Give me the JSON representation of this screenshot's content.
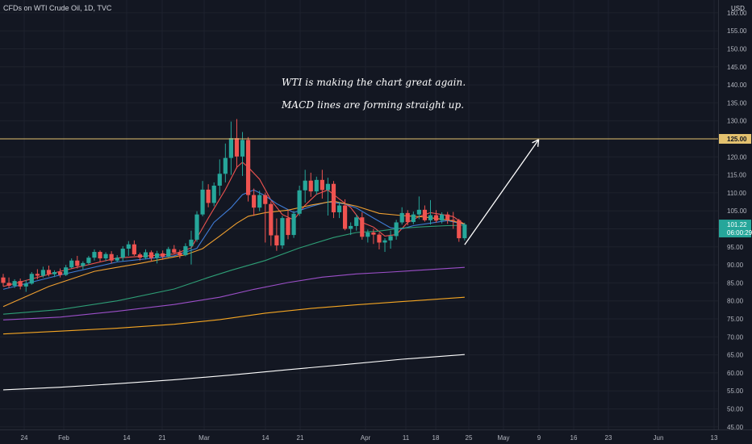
{
  "header": {
    "title": "CFDs on WTI Crude Oil, 1D, TVC"
  },
  "price_axis": {
    "currency": "USD"
  },
  "annotations": [
    "WTI is making the chart great again.",
    "MACD lines are forming straight up."
  ],
  "price_labels": {
    "resistance": "125.00",
    "last_price": "101.22",
    "countdown": "06:00:29"
  },
  "colors": {
    "background": "#131722",
    "grid": "#1e222d",
    "up_candle": "#26a69a",
    "down_candle": "#ef5350",
    "resistance_line": "#e3c16f",
    "ema_fast": "#ef5350",
    "ema_mid": "#3f7cd6",
    "ema_slow": "#f0a030",
    "ema_100": "#2e9e76",
    "ema_150": "#9c4fc9",
    "ema_200": "#f5a623",
    "ema_long": "#ffffff",
    "arrow": "#ffffff"
  },
  "chart_data": {
    "type": "candlestick",
    "title": "CFDs on WTI Crude Oil, 1D, TVC",
    "y_axis": {
      "unit": "USD",
      "range": [
        44,
        162
      ],
      "ticks": [
        "45.00",
        "50.00",
        "55.00",
        "60.00",
        "65.00",
        "70.00",
        "75.00",
        "80.00",
        "85.00",
        "90.00",
        "95.00",
        "100.00",
        "105.00",
        "110.00",
        "115.00",
        "120.00",
        "125.00",
        "130.00",
        "135.00",
        "140.00",
        "145.00",
        "150.00",
        "155.00",
        "160.00"
      ]
    },
    "x_axis": {
      "ticks": [
        "24",
        "Feb",
        "14",
        "21",
        "Mar",
        "14",
        "21",
        "Apr",
        "11",
        "18",
        "25",
        "May",
        "9",
        "16",
        "23",
        "Jun",
        "13"
      ]
    },
    "horizontal_line": {
      "value": 125.0,
      "label": "125.00"
    },
    "last_price": 101.22,
    "candles": [
      {
        "o": 86.5,
        "h": 87.5,
        "c": 85.0,
        "l": 84.0
      },
      {
        "o": 85.0,
        "h": 86.5,
        "c": 84.2,
        "l": 83.5
      },
      {
        "o": 84.2,
        "h": 86.0,
        "c": 85.5,
        "l": 83.6
      },
      {
        "o": 85.5,
        "h": 86.2,
        "c": 84.0,
        "l": 83.2
      },
      {
        "o": 84.0,
        "h": 85.8,
        "c": 84.8,
        "l": 82.5
      },
      {
        "o": 84.8,
        "h": 88.0,
        "c": 87.5,
        "l": 84.5
      },
      {
        "o": 87.5,
        "h": 88.8,
        "c": 87.0,
        "l": 86.0
      },
      {
        "o": 87.0,
        "h": 89.5,
        "c": 88.6,
        "l": 86.5
      },
      {
        "o": 88.6,
        "h": 89.8,
        "c": 87.4,
        "l": 86.8
      },
      {
        "o": 87.4,
        "h": 88.5,
        "c": 88.0,
        "l": 86.6
      },
      {
        "o": 88.0,
        "h": 89.0,
        "c": 87.2,
        "l": 86.5
      },
      {
        "o": 87.2,
        "h": 90.0,
        "c": 89.3,
        "l": 86.9
      },
      {
        "o": 89.3,
        "h": 91.8,
        "c": 91.2,
        "l": 89.0
      },
      {
        "o": 91.2,
        "h": 92.5,
        "c": 89.7,
        "l": 89.0
      },
      {
        "o": 89.7,
        "h": 91.0,
        "c": 90.5,
        "l": 88.8
      },
      {
        "o": 90.5,
        "h": 92.5,
        "c": 92.0,
        "l": 90.0
      },
      {
        "o": 92.0,
        "h": 94.3,
        "c": 93.6,
        "l": 91.2
      },
      {
        "o": 93.6,
        "h": 94.0,
        "c": 91.8,
        "l": 90.8
      },
      {
        "o": 91.8,
        "h": 93.5,
        "c": 93.0,
        "l": 91.0
      },
      {
        "o": 93.0,
        "h": 93.8,
        "c": 91.2,
        "l": 90.4
      },
      {
        "o": 91.2,
        "h": 92.7,
        "c": 92.0,
        "l": 90.8
      },
      {
        "o": 92.0,
        "h": 95.2,
        "c": 94.5,
        "l": 91.0
      },
      {
        "o": 94.5,
        "h": 96.6,
        "c": 95.7,
        "l": 92.5
      },
      {
        "o": 95.7,
        "h": 96.8,
        "c": 92.9,
        "l": 92.5
      },
      {
        "o": 92.9,
        "h": 93.4,
        "c": 92.0,
        "l": 91.2
      },
      {
        "o": 92.0,
        "h": 94.3,
        "c": 93.5,
        "l": 91.5
      },
      {
        "o": 93.5,
        "h": 94.0,
        "c": 91.9,
        "l": 90.9
      },
      {
        "o": 91.9,
        "h": 93.9,
        "c": 93.2,
        "l": 90.4
      },
      {
        "o": 93.2,
        "h": 94.0,
        "c": 92.3,
        "l": 91.4
      },
      {
        "o": 92.3,
        "h": 95.0,
        "c": 94.4,
        "l": 92.1
      },
      {
        "o": 94.4,
        "h": 95.5,
        "c": 93.4,
        "l": 92.9
      },
      {
        "o": 93.4,
        "h": 94.2,
        "c": 92.7,
        "l": 91.8
      },
      {
        "o": 92.7,
        "h": 96.0,
        "c": 95.2,
        "l": 92.4
      },
      {
        "o": 95.2,
        "h": 99.5,
        "c": 97.0,
        "l": 90.1
      },
      {
        "o": 97.0,
        "h": 104.9,
        "c": 104.0,
        "l": 96.4
      },
      {
        "o": 104.0,
        "h": 113.3,
        "c": 110.9,
        "l": 103.5
      },
      {
        "o": 110.9,
        "h": 112.4,
        "c": 107.2,
        "l": 106.0
      },
      {
        "o": 107.2,
        "h": 112.9,
        "c": 112.0,
        "l": 106.3
      },
      {
        "o": 112.0,
        "h": 119.3,
        "c": 115.3,
        "l": 109.2
      },
      {
        "o": 115.3,
        "h": 123.7,
        "c": 119.7,
        "l": 112.9
      },
      {
        "o": 119.7,
        "h": 129.8,
        "c": 125.2,
        "l": 115.0
      },
      {
        "o": 125.2,
        "h": 130.5,
        "c": 120.1,
        "l": 116.8
      },
      {
        "o": 120.1,
        "h": 126.9,
        "c": 124.7,
        "l": 114.7
      },
      {
        "o": 124.7,
        "h": 125.5,
        "c": 109.4,
        "l": 107.6
      },
      {
        "o": 109.4,
        "h": 111.2,
        "c": 105.9,
        "l": 103.6
      },
      {
        "o": 105.9,
        "h": 110.6,
        "c": 109.4,
        "l": 104.9
      },
      {
        "o": 109.4,
        "h": 110.1,
        "c": 106.9,
        "l": 96.2
      },
      {
        "o": 106.9,
        "h": 107.6,
        "c": 98.2,
        "l": 95.3
      },
      {
        "o": 98.2,
        "h": 102.9,
        "c": 95.4,
        "l": 93.9
      },
      {
        "o": 95.4,
        "h": 103.6,
        "c": 103.0,
        "l": 94.5
      },
      {
        "o": 103.0,
        "h": 105.2,
        "c": 98.3,
        "l": 97.1
      },
      {
        "o": 98.3,
        "h": 105.0,
        "c": 104.2,
        "l": 97.5
      },
      {
        "o": 104.2,
        "h": 112.0,
        "c": 110.7,
        "l": 103.6
      },
      {
        "o": 110.7,
        "h": 116.4,
        "c": 113.4,
        "l": 107.3
      },
      {
        "o": 113.4,
        "h": 115.6,
        "c": 110.4,
        "l": 108.9
      },
      {
        "o": 110.4,
        "h": 114.5,
        "c": 113.6,
        "l": 109.5
      },
      {
        "o": 113.6,
        "h": 116.4,
        "c": 110.8,
        "l": 108.4
      },
      {
        "o": 110.8,
        "h": 114.2,
        "c": 112.5,
        "l": 103.7
      },
      {
        "o": 112.5,
        "h": 113.3,
        "c": 104.6,
        "l": 103.0
      },
      {
        "o": 104.6,
        "h": 107.5,
        "c": 106.5,
        "l": 103.0
      },
      {
        "o": 106.5,
        "h": 108.2,
        "c": 100.0,
        "l": 99.6
      },
      {
        "o": 100.0,
        "h": 101.8,
        "c": 100.8,
        "l": 98.3
      },
      {
        "o": 100.8,
        "h": 104.0,
        "c": 103.2,
        "l": 99.5
      },
      {
        "o": 103.2,
        "h": 104.6,
        "c": 97.8,
        "l": 97.0
      },
      {
        "o": 97.8,
        "h": 99.8,
        "c": 99.0,
        "l": 96.2
      },
      {
        "o": 99.0,
        "h": 100.0,
        "c": 98.4,
        "l": 95.8
      },
      {
        "o": 98.4,
        "h": 98.9,
        "c": 96.2,
        "l": 94.3
      },
      {
        "o": 96.2,
        "h": 97.4,
        "c": 96.8,
        "l": 93.6
      },
      {
        "o": 96.8,
        "h": 99.5,
        "c": 98.0,
        "l": 94.5
      },
      {
        "o": 98.0,
        "h": 102.5,
        "c": 101.8,
        "l": 97.0
      },
      {
        "o": 101.8,
        "h": 106.0,
        "c": 104.4,
        "l": 101.2
      },
      {
        "o": 104.4,
        "h": 105.2,
        "c": 101.9,
        "l": 101.0
      },
      {
        "o": 101.9,
        "h": 104.8,
        "c": 104.0,
        "l": 101.3
      },
      {
        "o": 104.0,
        "h": 109.0,
        "c": 105.3,
        "l": 102.7
      },
      {
        "o": 105.3,
        "h": 106.5,
        "c": 102.4,
        "l": 102.0
      },
      {
        "o": 102.4,
        "h": 108.0,
        "c": 103.8,
        "l": 101.2
      },
      {
        "o": 103.8,
        "h": 105.2,
        "c": 102.3,
        "l": 101.7
      },
      {
        "o": 102.3,
        "h": 104.6,
        "c": 104.0,
        "l": 101.5
      },
      {
        "o": 104.0,
        "h": 104.7,
        "c": 102.5,
        "l": 101.4
      },
      {
        "o": 102.5,
        "h": 104.7,
        "c": 102.4,
        "l": 100.0
      },
      {
        "o": 102.4,
        "h": 102.8,
        "c": 97.4,
        "l": 96.4
      },
      {
        "o": 97.4,
        "h": 101.7,
        "c": 101.2,
        "l": 96.8
      }
    ],
    "moving_averages": [
      {
        "color": "#ef5350",
        "points": [
          [
            0,
            84.0
          ],
          [
            10,
            88.2
          ],
          [
            20,
            91.9
          ],
          [
            30,
            93.0
          ],
          [
            33,
            94.7
          ],
          [
            36,
            103.0
          ],
          [
            39,
            110.9
          ],
          [
            41,
            117.1
          ],
          [
            42,
            118.5
          ],
          [
            43,
            117.1
          ],
          [
            45,
            113.8
          ],
          [
            47,
            108.0
          ],
          [
            49,
            104.0
          ],
          [
            51,
            102.5
          ],
          [
            53,
            106.6
          ],
          [
            55,
            109.6
          ],
          [
            57,
            110.8
          ],
          [
            59,
            108.3
          ],
          [
            61,
            105.9
          ],
          [
            63,
            101.8
          ],
          [
            65,
            100.5
          ],
          [
            67,
            98.0
          ],
          [
            69,
            98.4
          ],
          [
            71,
            101.8
          ],
          [
            73,
            103.4
          ],
          [
            75,
            104.5
          ],
          [
            77,
            104.0
          ],
          [
            79,
            103.4
          ],
          [
            81,
            101.2
          ]
        ]
      },
      {
        "color": "#3f7cd6",
        "points": [
          [
            0,
            83.2
          ],
          [
            10,
            87.2
          ],
          [
            20,
            90.8
          ],
          [
            30,
            92.5
          ],
          [
            34,
            94.6
          ],
          [
            37,
            101.8
          ],
          [
            40,
            105.9
          ],
          [
            42,
            109.5
          ],
          [
            44,
            110.8
          ],
          [
            46,
            109.2
          ],
          [
            48,
            107.0
          ],
          [
            51,
            104.5
          ],
          [
            54,
            106.2
          ],
          [
            57,
            107.5
          ],
          [
            60,
            106.9
          ],
          [
            62,
            105.8
          ],
          [
            65,
            103.0
          ],
          [
            68,
            100.3
          ],
          [
            70,
            100.0
          ],
          [
            72,
            100.9
          ],
          [
            75,
            101.6
          ],
          [
            78,
            102.3
          ],
          [
            81,
            101.2
          ]
        ]
      },
      {
        "color": "#f0a030",
        "points": [
          [
            0,
            78.4
          ],
          [
            8,
            84.0
          ],
          [
            16,
            88.2
          ],
          [
            24,
            90.4
          ],
          [
            32,
            92.8
          ],
          [
            35,
            94.5
          ],
          [
            38,
            98.0
          ],
          [
            41,
            101.6
          ],
          [
            43,
            103.5
          ],
          [
            46,
            104.5
          ],
          [
            50,
            105.2
          ],
          [
            54,
            106.6
          ],
          [
            58,
            107.7
          ],
          [
            62,
            106.3
          ],
          [
            66,
            104.3
          ],
          [
            70,
            103.7
          ],
          [
            74,
            103.3
          ],
          [
            78,
            102.5
          ],
          [
            81,
            101.4
          ]
        ]
      },
      {
        "color": "#2e9e76",
        "points": [
          [
            0,
            76.3
          ],
          [
            10,
            77.6
          ],
          [
            20,
            80.0
          ],
          [
            30,
            83.3
          ],
          [
            36,
            86.5
          ],
          [
            40,
            88.5
          ],
          [
            46,
            91.2
          ],
          [
            52,
            94.7
          ],
          [
            58,
            97.6
          ],
          [
            62,
            99.0
          ],
          [
            66,
            99.4
          ],
          [
            70,
            100.2
          ],
          [
            74,
            100.6
          ],
          [
            78,
            100.9
          ],
          [
            81,
            101.0
          ]
        ]
      },
      {
        "color": "#9c4fc9",
        "points": [
          [
            0,
            74.7
          ],
          [
            10,
            75.5
          ],
          [
            20,
            77.1
          ],
          [
            30,
            79.0
          ],
          [
            38,
            81.0
          ],
          [
            44,
            83.2
          ],
          [
            50,
            85.1
          ],
          [
            56,
            86.6
          ],
          [
            62,
            87.5
          ],
          [
            68,
            88.0
          ],
          [
            74,
            88.6
          ],
          [
            81,
            89.3
          ]
        ]
      },
      {
        "color": "#f5a623",
        "points": [
          [
            0,
            70.8
          ],
          [
            10,
            71.6
          ],
          [
            20,
            72.4
          ],
          [
            30,
            73.5
          ],
          [
            38,
            74.8
          ],
          [
            46,
            76.6
          ],
          [
            54,
            77.9
          ],
          [
            62,
            78.9
          ],
          [
            70,
            79.8
          ],
          [
            81,
            81.0
          ]
        ]
      },
      {
        "color": "#ffffff",
        "points": [
          [
            0,
            55.3
          ],
          [
            10,
            56.0
          ],
          [
            20,
            57.0
          ],
          [
            30,
            58.1
          ],
          [
            40,
            59.4
          ],
          [
            50,
            60.9
          ],
          [
            60,
            62.3
          ],
          [
            70,
            63.8
          ],
          [
            81,
            65.1
          ]
        ]
      }
    ],
    "projection_arrow": {
      "from": {
        "i": 81,
        "price": 95.6
      },
      "to": {
        "i": 94,
        "price": 124.8
      }
    }
  }
}
